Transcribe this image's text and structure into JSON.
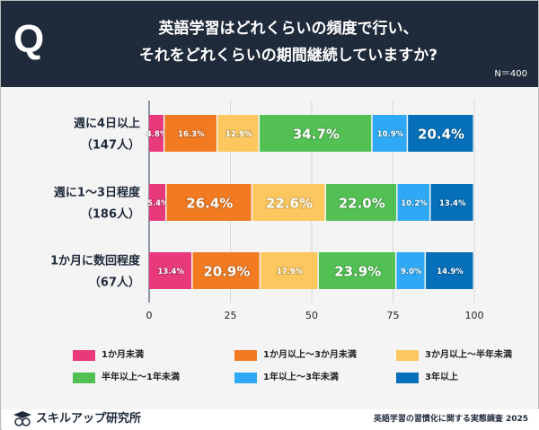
{
  "header": {
    "q": "Q",
    "title_line1": "英語学習はどれくらいの頻度で行い、",
    "title_line2": "それをどれくらいの期間継続していますか?",
    "n": "N＝400"
  },
  "footer": {
    "brand": "スキルアップ研究所",
    "source": "英語学習の習慣化に関する実態調査 2025"
  },
  "chart_data": {
    "type": "bar",
    "orientation": "horizontal",
    "stacked": true,
    "categories": [
      [
        "週に4日以上",
        "（147人）"
      ],
      [
        "週に1～3日程度",
        "（186人）"
      ],
      [
        "1か月に数回程度",
        "（67人）"
      ]
    ],
    "series": [
      {
        "name": "1か月未満",
        "color": "#e8397a",
        "values": [
          4.8,
          5.4,
          13.4
        ]
      },
      {
        "name": "1か月以上～3か月未満",
        "color": "#f27b22",
        "values": [
          16.3,
          26.4,
          20.9
        ]
      },
      {
        "name": "3か月以上～半年未満",
        "color": "#fcc75e",
        "values": [
          12.9,
          22.6,
          17.9
        ]
      },
      {
        "name": "半年以上～1年未満",
        "color": "#52c053",
        "values": [
          34.7,
          22.0,
          23.9
        ]
      },
      {
        "name": "1年以上～3年未満",
        "color": "#2fa9f6",
        "values": [
          10.9,
          10.2,
          9.0
        ]
      },
      {
        "name": "3年以上",
        "color": "#0570b9",
        "values": [
          20.4,
          13.4,
          14.9
        ]
      }
    ],
    "xlim": [
      0,
      100
    ],
    "xticks": [
      0,
      25,
      50,
      75,
      100
    ],
    "grid": true,
    "legend": "bottom",
    "unit": "%"
  }
}
